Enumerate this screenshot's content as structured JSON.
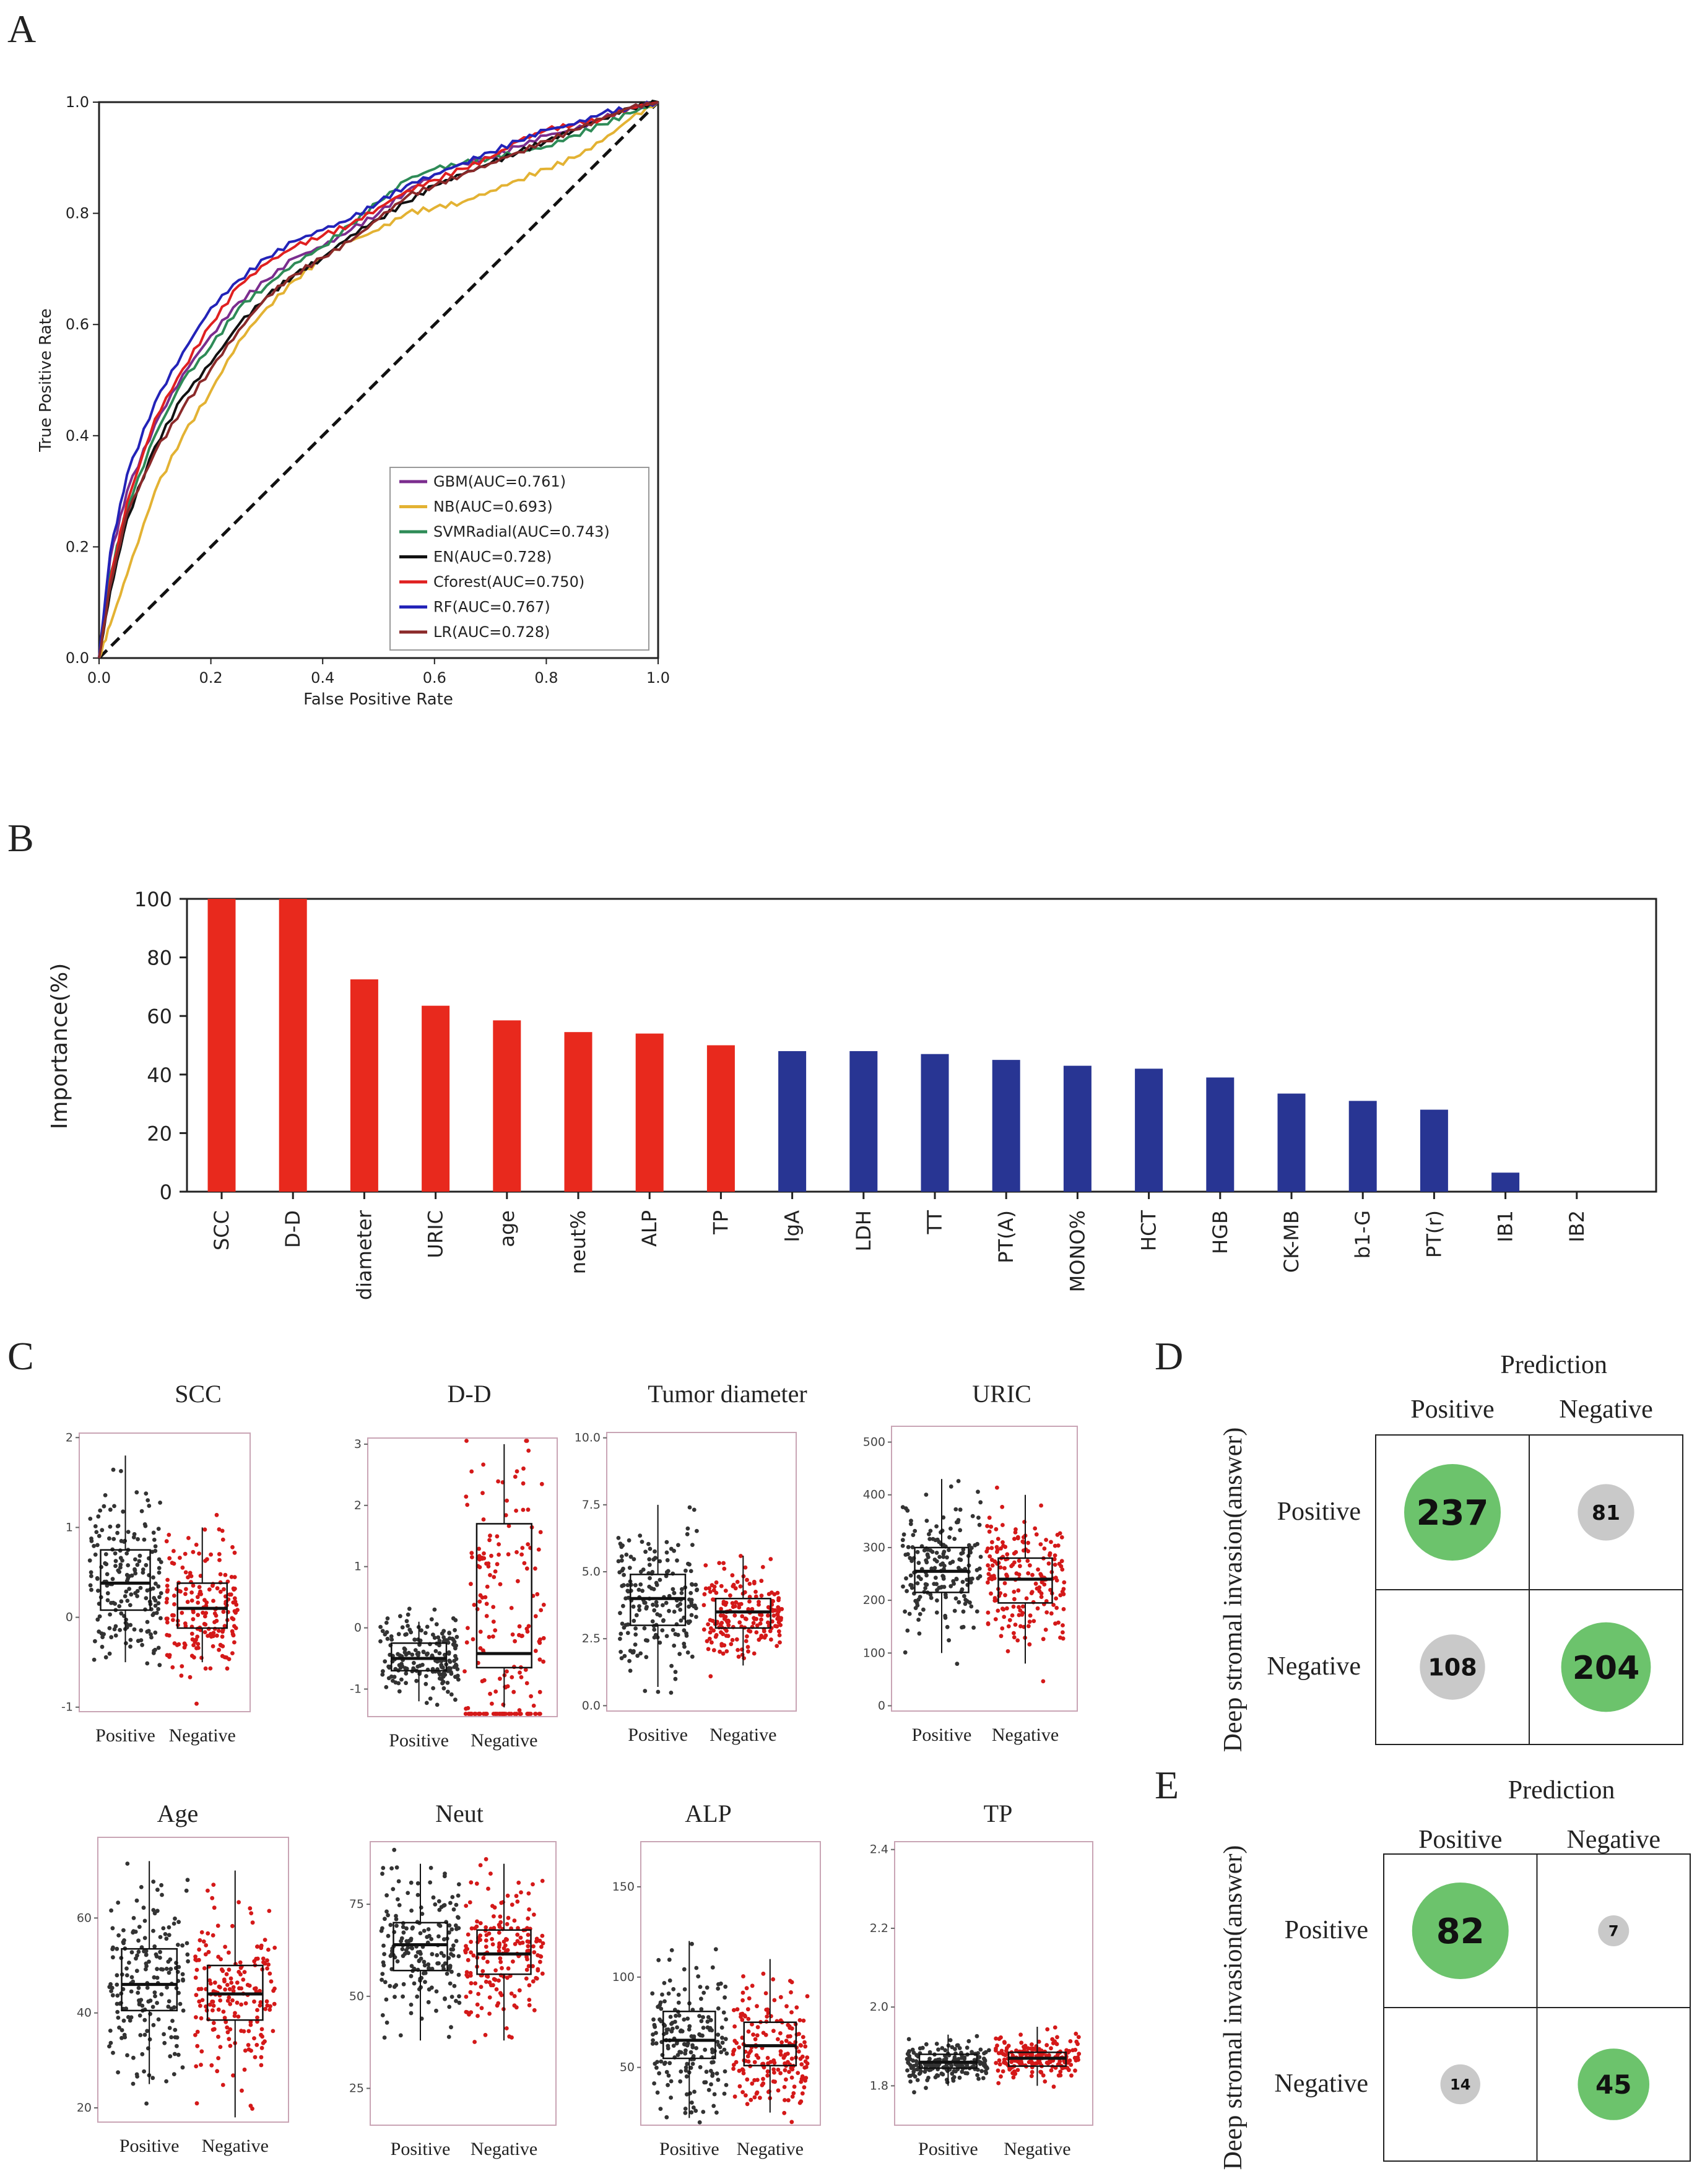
{
  "panels": {
    "A": "A",
    "B": "B",
    "C": "C",
    "D": "D",
    "E": "E"
  },
  "colors": {
    "GBM": "#7b2d8e",
    "NB": "#e3b233",
    "SVMRadial": "#2e8b57",
    "EN": "#111111",
    "Cforest": "#e02020",
    "RF": "#2323b8",
    "LR": "#8b2a2a",
    "bar_red": "#e8291d",
    "bar_blue": "#283593",
    "pos_dots": "#333333",
    "neg_dots": "#d41919",
    "circle_green": "#6cc36c",
    "circle_gray": "#c9c9c9"
  },
  "chart_data": [
    {
      "type": "line",
      "id": "roc",
      "xlabel": "False Positive Rate",
      "ylabel": "True Positive Rate",
      "xlim": [
        0,
        1
      ],
      "ylim": [
        0,
        1
      ],
      "ticks": [
        "0.0",
        "0.2",
        "0.4",
        "0.6",
        "0.8",
        "1.0"
      ],
      "x": [
        0,
        0.02,
        0.05,
        0.1,
        0.15,
        0.2,
        0.25,
        0.3,
        0.35,
        0.4,
        0.45,
        0.5,
        0.55,
        0.6,
        0.65,
        0.7,
        0.75,
        0.8,
        0.85,
        0.9,
        0.95,
        1.0
      ],
      "series": [
        {
          "name": "GBM",
          "legend": "GBM(AUC=0.761)",
          "values": [
            0,
            0.18,
            0.3,
            0.42,
            0.51,
            0.58,
            0.64,
            0.68,
            0.72,
            0.74,
            0.77,
            0.8,
            0.84,
            0.87,
            0.89,
            0.9,
            0.92,
            0.94,
            0.95,
            0.97,
            0.99,
            1.0
          ]
        },
        {
          "name": "NB",
          "legend": "NB(AUC=0.693)",
          "values": [
            0,
            0.06,
            0.15,
            0.3,
            0.4,
            0.48,
            0.57,
            0.63,
            0.68,
            0.72,
            0.75,
            0.77,
            0.8,
            0.81,
            0.82,
            0.84,
            0.86,
            0.88,
            0.9,
            0.93,
            0.97,
            1.0
          ]
        },
        {
          "name": "SVMRadial",
          "legend": "SVMRadial(AUC=0.743)",
          "values": [
            0,
            0.15,
            0.27,
            0.4,
            0.5,
            0.56,
            0.63,
            0.67,
            0.71,
            0.74,
            0.78,
            0.82,
            0.86,
            0.88,
            0.89,
            0.9,
            0.91,
            0.92,
            0.94,
            0.96,
            0.98,
            1.0
          ]
        },
        {
          "name": "EN",
          "legend": "EN(AUC=0.728)",
          "values": [
            0,
            0.12,
            0.25,
            0.38,
            0.47,
            0.53,
            0.6,
            0.65,
            0.69,
            0.72,
            0.76,
            0.79,
            0.82,
            0.85,
            0.87,
            0.89,
            0.91,
            0.93,
            0.95,
            0.97,
            0.99,
            1.0
          ]
        },
        {
          "name": "Cforest",
          "legend": "Cforest(AUC=0.750)",
          "values": [
            0,
            0.14,
            0.28,
            0.43,
            0.52,
            0.6,
            0.67,
            0.71,
            0.74,
            0.76,
            0.78,
            0.81,
            0.84,
            0.86,
            0.88,
            0.9,
            0.93,
            0.95,
            0.96,
            0.97,
            0.99,
            1.0
          ]
        },
        {
          "name": "RF",
          "legend": "RF(AUC=0.767)",
          "values": [
            0,
            0.19,
            0.33,
            0.46,
            0.55,
            0.63,
            0.68,
            0.72,
            0.75,
            0.77,
            0.79,
            0.82,
            0.85,
            0.87,
            0.89,
            0.91,
            0.93,
            0.95,
            0.96,
            0.98,
            0.99,
            1.0
          ]
        },
        {
          "name": "LR",
          "legend": "LR(AUC=0.728)",
          "values": [
            0,
            0.13,
            0.26,
            0.37,
            0.45,
            0.52,
            0.59,
            0.65,
            0.69,
            0.72,
            0.75,
            0.79,
            0.83,
            0.85,
            0.87,
            0.89,
            0.91,
            0.93,
            0.95,
            0.97,
            0.99,
            1.0
          ]
        }
      ]
    },
    {
      "type": "bar",
      "id": "importance",
      "ylabel": "Importance(%)",
      "ylim": [
        0,
        100
      ],
      "yticks": [
        "0",
        "20",
        "40",
        "60",
        "80",
        "100"
      ],
      "categories": [
        "SCC",
        "D-D",
        "diameter",
        "URIC",
        "age",
        "neut%",
        "ALP",
        "TP",
        "IgA",
        "LDH",
        "TT",
        "PT(A)",
        "MONO%",
        "HCT",
        "HGB",
        "CK-MB",
        "b1-G",
        "PT(r)",
        "IB1",
        "IB2"
      ],
      "values": [
        100,
        100,
        72.5,
        63.5,
        58.5,
        54.5,
        54,
        50,
        48,
        48,
        47,
        45,
        43,
        42,
        39,
        33.5,
        31,
        28,
        6.5,
        0
      ],
      "groups": [
        "red",
        "red",
        "red",
        "red",
        "red",
        "red",
        "red",
        "red",
        "blue",
        "blue",
        "blue",
        "blue",
        "blue",
        "blue",
        "blue",
        "blue",
        "blue",
        "blue",
        "blue",
        "blue"
      ]
    },
    {
      "type": "box",
      "id": "boxplots",
      "xlabels": [
        "Positive",
        "Negative"
      ],
      "plots": [
        {
          "title": "SCC",
          "yticks": [
            "-1",
            "0",
            "1",
            "2"
          ],
          "ylim": [
            -1.05,
            2.05
          ],
          "pos": {
            "q1": 0.08,
            "med": 0.38,
            "q3": 0.75,
            "lo": -0.5,
            "hi": 1.8
          },
          "neg": {
            "q1": -0.12,
            "med": 0.1,
            "q3": 0.38,
            "lo": -0.5,
            "hi": 1.0
          }
        },
        {
          "title": "D-D",
          "yticks": [
            "-1",
            "0",
            "1",
            "2",
            "3"
          ],
          "ylim": [
            -1.45,
            3.1
          ],
          "pos": {
            "q1": -0.7,
            "med": -0.5,
            "q3": -0.25,
            "lo": -1.2,
            "hi": 0.1
          },
          "neg": {
            "q1": -0.65,
            "med": -0.42,
            "q3": 1.7,
            "lo": -1.3,
            "hi": 3.0
          }
        },
        {
          "title": "Tumor diameter",
          "yticks": [
            "0.0",
            "2.5",
            "5.0",
            "7.5",
            "10.0"
          ],
          "ylim": [
            -0.2,
            10.2
          ],
          "pos": {
            "q1": 3.0,
            "med": 4.0,
            "q3": 4.9,
            "lo": 0.7,
            "hi": 7.5
          },
          "neg": {
            "q1": 2.9,
            "med": 3.5,
            "q3": 4.0,
            "lo": 1.5,
            "hi": 5.6
          }
        },
        {
          "title": "URIC",
          "yticks": [
            "0",
            "100",
            "200",
            "300",
            "400",
            "500"
          ],
          "ylim": [
            -10,
            530
          ],
          "pos": {
            "q1": 215,
            "med": 255,
            "q3": 300,
            "lo": 100,
            "hi": 430
          },
          "neg": {
            "q1": 195,
            "med": 240,
            "q3": 280,
            "lo": 80,
            "hi": 400
          }
        },
        {
          "title": "Age",
          "yticks": [
            "20",
            "40",
            "60"
          ],
          "ylim": [
            17,
            77
          ],
          "pos": {
            "q1": 40.5,
            "med": 46,
            "q3": 53.5,
            "lo": 25,
            "hi": 72
          },
          "neg": {
            "q1": 38.5,
            "med": 44,
            "q3": 50,
            "lo": 18,
            "hi": 70
          }
        },
        {
          "title": "Neut",
          "yticks": [
            "25",
            "50",
            "75"
          ],
          "ylim": [
            15,
            92
          ],
          "pos": {
            "q1": 57,
            "med": 64,
            "q3": 70,
            "lo": 38,
            "hi": 86
          },
          "neg": {
            "q1": 56,
            "med": 61.5,
            "q3": 68,
            "lo": 38,
            "hi": 86
          }
        },
        {
          "title": "ALP",
          "yticks": [
            "50",
            "100",
            "150"
          ],
          "ylim": [
            18,
            175
          ],
          "pos": {
            "q1": 55,
            "med": 65,
            "q3": 81,
            "lo": 22,
            "hi": 120
          },
          "neg": {
            "q1": 51,
            "med": 62,
            "q3": 75,
            "lo": 25,
            "hi": 110
          }
        },
        {
          "title": "TP",
          "yticks": [
            "1.8",
            "2.0",
            "2.2",
            "2.4"
          ],
          "ylim": [
            1.7,
            2.42
          ],
          "pos": {
            "q1": 1.845,
            "med": 1.86,
            "q3": 1.88,
            "lo": 1.8,
            "hi": 1.93
          },
          "neg": {
            "q1": 1.85,
            "med": 1.87,
            "q3": 1.885,
            "lo": 1.8,
            "hi": 1.95
          }
        }
      ]
    },
    {
      "type": "table",
      "id": "confusion_D",
      "title": "Prediction",
      "ylabel": "Deep stromal invasion(answer)",
      "cols": [
        "Positive",
        "Negative"
      ],
      "rows": [
        "Positive",
        "Negative"
      ],
      "values": [
        [
          237,
          81
        ],
        [
          108,
          204
        ]
      ]
    },
    {
      "type": "table",
      "id": "confusion_E",
      "title": "Prediction",
      "ylabel": "Deep stromal invasion(answer)",
      "cols": [
        "Positive",
        "Negative"
      ],
      "rows": [
        "Positive",
        "Negative"
      ],
      "values": [
        [
          82,
          7
        ],
        [
          14,
          45
        ]
      ]
    }
  ]
}
